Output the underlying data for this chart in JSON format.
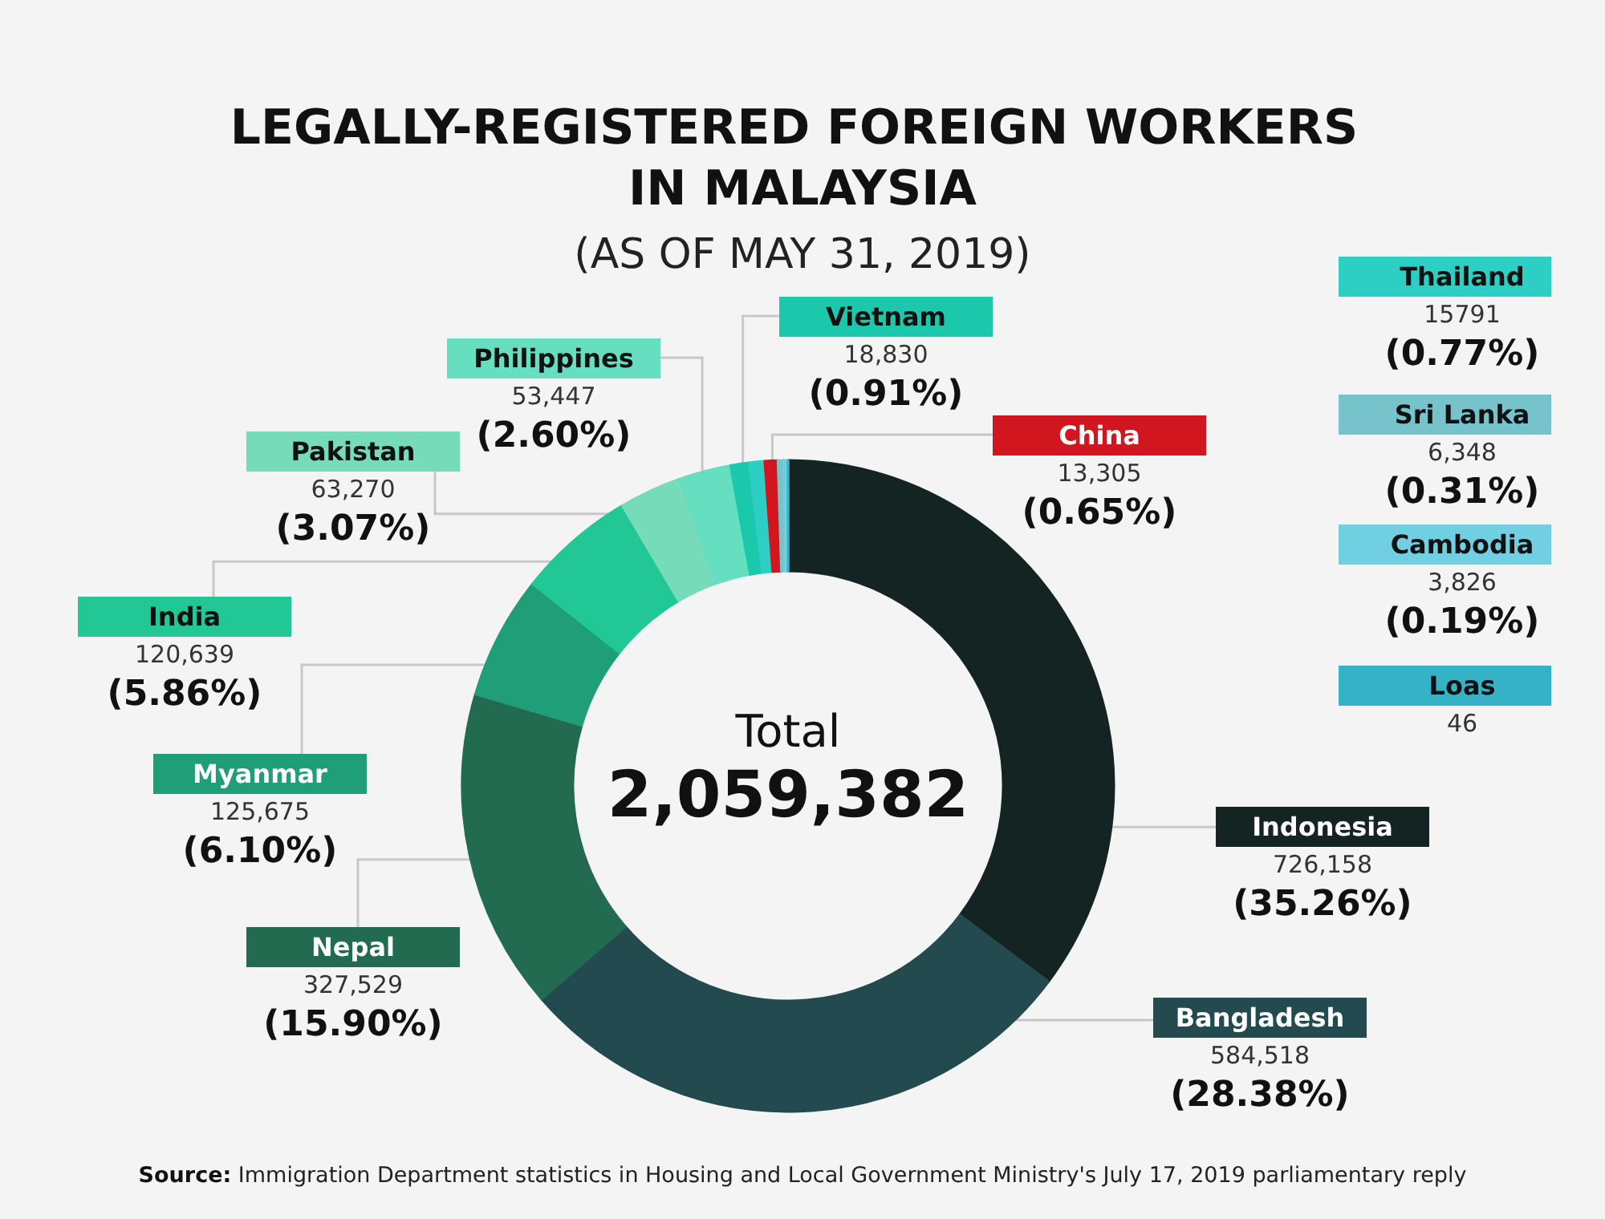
{
  "chart_data": {
    "type": "donut",
    "title": "LEGALLY-REGISTERED FOREIGN WORKERS IN MALAYSIA",
    "subtitle": "(AS OF MAY 31, 2019)",
    "categories": [
      "Indonesia",
      "Bangladesh",
      "Nepal",
      "Myanmar",
      "India",
      "Pakistan",
      "Philippines",
      "Vietnam",
      "Thailand",
      "China",
      "Sri Lanka",
      "Cambodia",
      "Loas"
    ],
    "values": [
      726158,
      584518,
      327529,
      125675,
      120639,
      63270,
      53447,
      18830,
      15791,
      13305,
      6348,
      3826,
      46
    ],
    "colors": [
      "#142423",
      "#234a4f",
      "#226b50",
      "#1f9e78",
      "#21c896",
      "#76dbb8",
      "#66dec0",
      "#1bc8ab",
      "#2dcfc4",
      "#d1161f",
      "#76c3cb",
      "#70d0e2",
      "#35b2c6"
    ],
    "value_labels": [
      "726,158\n(35.26%)",
      "584,518\n(28.38%)",
      "327,529\n(15.90%)",
      "125,675\n(6.10%)",
      "120,639\n(5.86%)",
      "63,270\n(3.07%)",
      "53,447\n(2.60%)",
      "18,830\n(0.91%)",
      "15791\n(0.77%)",
      "13,305\n(0.65%)",
      "6,348\n(0.31%)",
      "3,826\n(0.19%)",
      "46"
    ],
    "legend": "right",
    "annotations": [
      "Total",
      "2,059,382",
      "Source: Immigration Department statistics in Housing and Local Government Ministry's July 17, 2019 parliamentary reply"
    ]
  }
}
